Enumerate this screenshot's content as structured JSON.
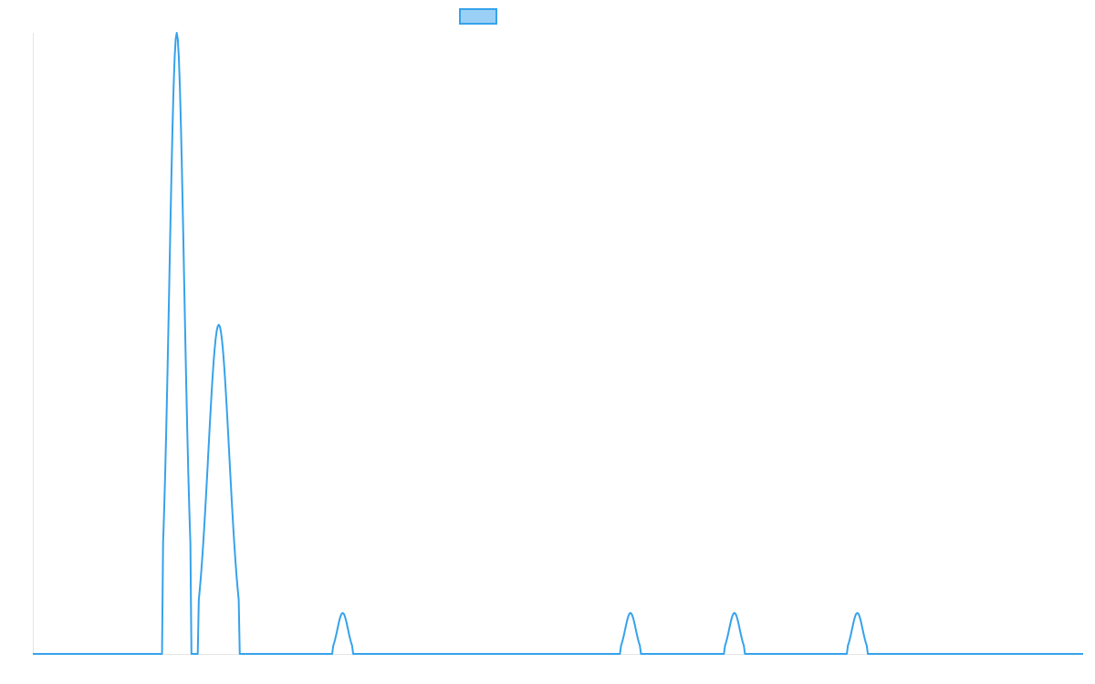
{
  "chart_data": {
    "type": "line",
    "title": "",
    "xlabel": "",
    "ylabel": "",
    "xlim": [
      0,
      1000
    ],
    "ylim": [
      0,
      100
    ],
    "grid": false,
    "legend": {
      "position": "top-center",
      "entries": [
        {
          "name": "",
          "color": "#36a2eb",
          "fill": "#9ad0f5"
        }
      ]
    },
    "series": [
      {
        "name": "",
        "color": "#36a2eb",
        "peaks": [
          {
            "center": 137,
            "height": 100,
            "width": 7
          },
          {
            "center": 177,
            "height": 53,
            "width": 10
          },
          {
            "center": 295,
            "height": 6.6,
            "width": 5
          },
          {
            "center": 569,
            "height": 6.6,
            "width": 5
          },
          {
            "center": 668,
            "height": 6.6,
            "width": 5
          },
          {
            "center": 785,
            "height": 6.6,
            "width": 5
          }
        ]
      }
    ]
  }
}
